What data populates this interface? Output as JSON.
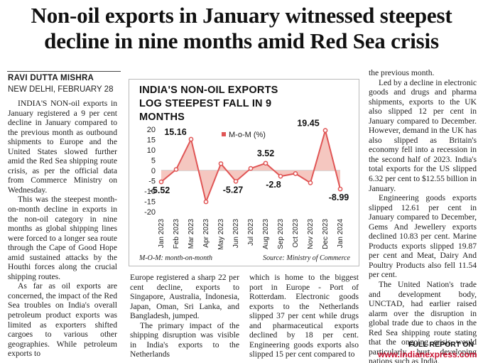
{
  "headline": "Non-oil exports in January witnessed steepest decline in nine months amid Red Sea crisis",
  "byline": "RAVI DUTTA MISHRA",
  "dateline": "NEW DELHI, FEBRUARY 28",
  "col1": [
    "INDIA'S NON-oil exports in January registered a 9 per cent decline in January compared to the previous month as outbound shipments to Europe and the United States slowed further amid the Red Sea shipping route crisis, as per the official data from Commerce Ministry on Wednesday.",
    "This was the steepest month-on-month decline in exports in the non-oil category in nine months as global shipping lines were forced to a longer sea route through the Cape of Good Hope amid sustained attacks by the Houthi forces along the crucial shipping routes.",
    "As far as oil exports are concerned, the impact of the Red Sea troubles on India's overall petroleum product exports was limited as exporters shifted cargoes to various other geographies. While petroleum exports to"
  ],
  "col2": [
    "Europe registered a sharp 22 per cent decline, exports to Singapore, Australia, Indonesia, Japan, Oman, Sri Lanka, and Bangladesh, jumped.",
    "The primary impact of the shipping disruption was visible in India's exports to the Netherlands"
  ],
  "col3": [
    "which is home to the biggest port in Europe - Port of Rotterdam. Electronic goods exports to the Netherlands slipped 37 per cent while drugs and pharmaceutical exports declined by 18 per cent. Engineering goods exports also slipped 15 per cent compared to"
  ],
  "col4": [
    "the previous month.",
    "Led by a decline in electronic goods and drugs and pharma shipments, exports to the UK also slipped 12 per cent in January compared to December. However, demand in the UK has also slipped as Britain's economy fell into a recession in the second half of 2023. India's total exports for the US slipped 6.32 per cent to $12.55 billion in January.",
    "Engineering goods exports slipped 12.61 per cent in January compared to December, Gems And Jewellery exports declined 10.83 per cent. Marine Products exports slipped 19.87 per cent and Meat, Dairy And Poultry Products also fell 11.54 per cent.",
    "The United Nation's trade and development body, UNCTAD, had earlier raised alarm over the disruption in global trade due to chaos in the Red Sea shipping route stating that the ongoing crisis would particularly hurt developing nations such as India."
  ],
  "chart_data": {
    "type": "area",
    "title": "INDIA'S NON-OIL EXPORTS LOG STEEPEST FALL IN 9 MONTHS",
    "categories": [
      "Jan 2023",
      "Feb 2023",
      "Mar 2023",
      "Apr 2023",
      "May 2023",
      "Jun 2023",
      "Jul 2023",
      "Aug 2023",
      "Sep 2023",
      "Oct 2023",
      "Nov 2023",
      "Dec 2023",
      "Jan 2024"
    ],
    "series": [
      {
        "name": "M-o-M (%)",
        "values": [
          -5.52,
          0.5,
          15.16,
          -15.2,
          3.3,
          -5.27,
          1.0,
          3.52,
          -2.8,
          -1.5,
          -6.0,
          19.45,
          -8.99
        ]
      }
    ],
    "labels": [
      {
        "index": 0,
        "text": "-5.52"
      },
      {
        "index": 2,
        "text": "15.16"
      },
      {
        "index": 5,
        "text": "-5.27"
      },
      {
        "index": 7,
        "text": "3.52"
      },
      {
        "index": 8,
        "text": "-2.8"
      },
      {
        "index": 11,
        "text": "19.45"
      },
      {
        "index": 12,
        "text": "-8.99"
      }
    ],
    "yticks": [
      20,
      15,
      10,
      5,
      0,
      -5,
      -10,
      -15,
      -20
    ],
    "ylim": [
      -20,
      20
    ],
    "legend": "top",
    "line_color": "#e05555",
    "fill_color": "#f5c7c0",
    "note": "M-O-M: month-on-month",
    "source": "Source: Ministry of Commerce"
  },
  "fullreport": "FULL REPORT ON",
  "weburl": "www.indianexpress.com"
}
